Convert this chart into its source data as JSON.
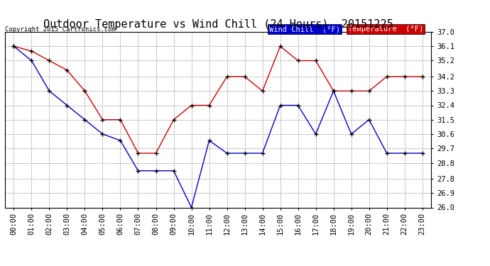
{
  "title": "Outdoor Temperature vs Wind Chill (24 Hours)  20151225",
  "copyright_text": "Copyright 2015 Cartronics.com",
  "x_labels": [
    "00:00",
    "01:00",
    "02:00",
    "03:00",
    "04:00",
    "05:00",
    "06:00",
    "07:00",
    "08:00",
    "09:00",
    "10:00",
    "11:00",
    "12:00",
    "13:00",
    "14:00",
    "15:00",
    "16:00",
    "17:00",
    "18:00",
    "19:00",
    "20:00",
    "21:00",
    "22:00",
    "23:00"
  ],
  "temperature": [
    36.1,
    35.8,
    35.2,
    34.6,
    33.3,
    31.5,
    31.5,
    29.4,
    29.4,
    31.5,
    32.4,
    32.4,
    34.2,
    34.2,
    33.3,
    36.1,
    35.2,
    35.2,
    33.3,
    33.3,
    33.3,
    34.2,
    34.2,
    34.2
  ],
  "wind_chill": [
    36.1,
    35.2,
    33.3,
    32.4,
    31.5,
    30.6,
    30.2,
    28.3,
    28.3,
    28.3,
    26.0,
    30.2,
    29.4,
    29.4,
    29.4,
    32.4,
    32.4,
    30.6,
    33.3,
    30.6,
    31.5,
    29.4,
    29.4,
    29.4
  ],
  "ylim": [
    26.0,
    37.0
  ],
  "yticks": [
    26.0,
    26.9,
    27.8,
    28.8,
    29.7,
    30.6,
    31.5,
    32.4,
    33.3,
    34.2,
    35.2,
    36.1,
    37.0
  ],
  "temp_color": "#cc0000",
  "wind_color": "#0000cc",
  "bg_color": "#ffffff",
  "plot_bg": "#ffffff",
  "grid_color": "#999999",
  "title_fontsize": 11,
  "axis_fontsize": 7.5,
  "legend_wind_label": "Wind Chill  (°F)",
  "legend_temp_label": "Temperature  (°F)"
}
